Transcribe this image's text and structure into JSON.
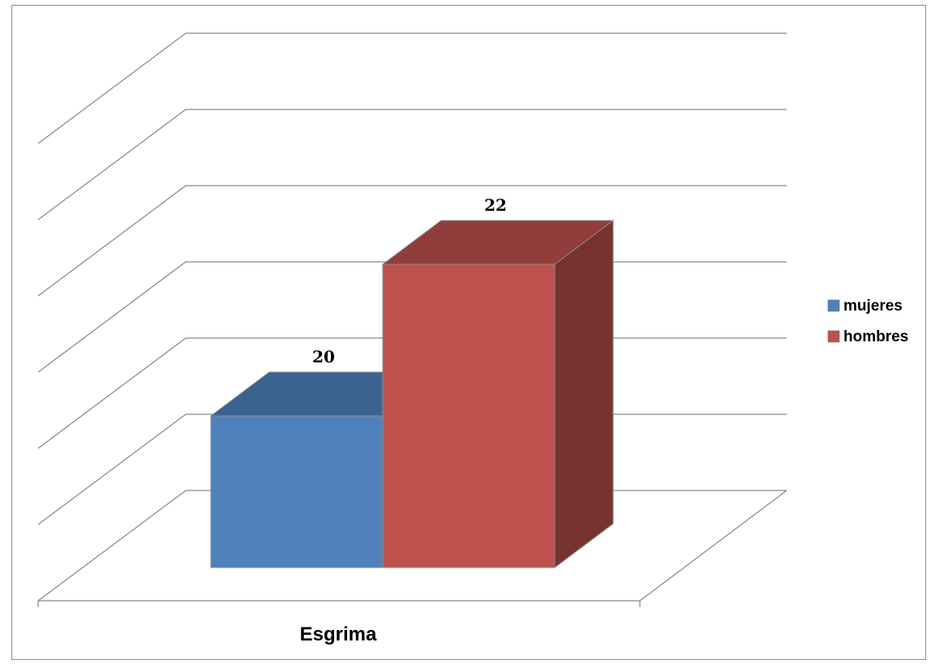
{
  "chart_data": {
    "type": "bar",
    "style": "3d-clustered-column",
    "categories": [
      "Esgrima"
    ],
    "series": [
      {
        "name": "mujeres",
        "values": [
          20
        ],
        "color": "#4f81bd"
      },
      {
        "name": "hombres",
        "values": [
          22
        ],
        "color": "#c0504d"
      }
    ],
    "data_labels": [
      "20",
      "22"
    ],
    "ylim": [
      18,
      24
    ],
    "grid": true,
    "legend": "right"
  }
}
